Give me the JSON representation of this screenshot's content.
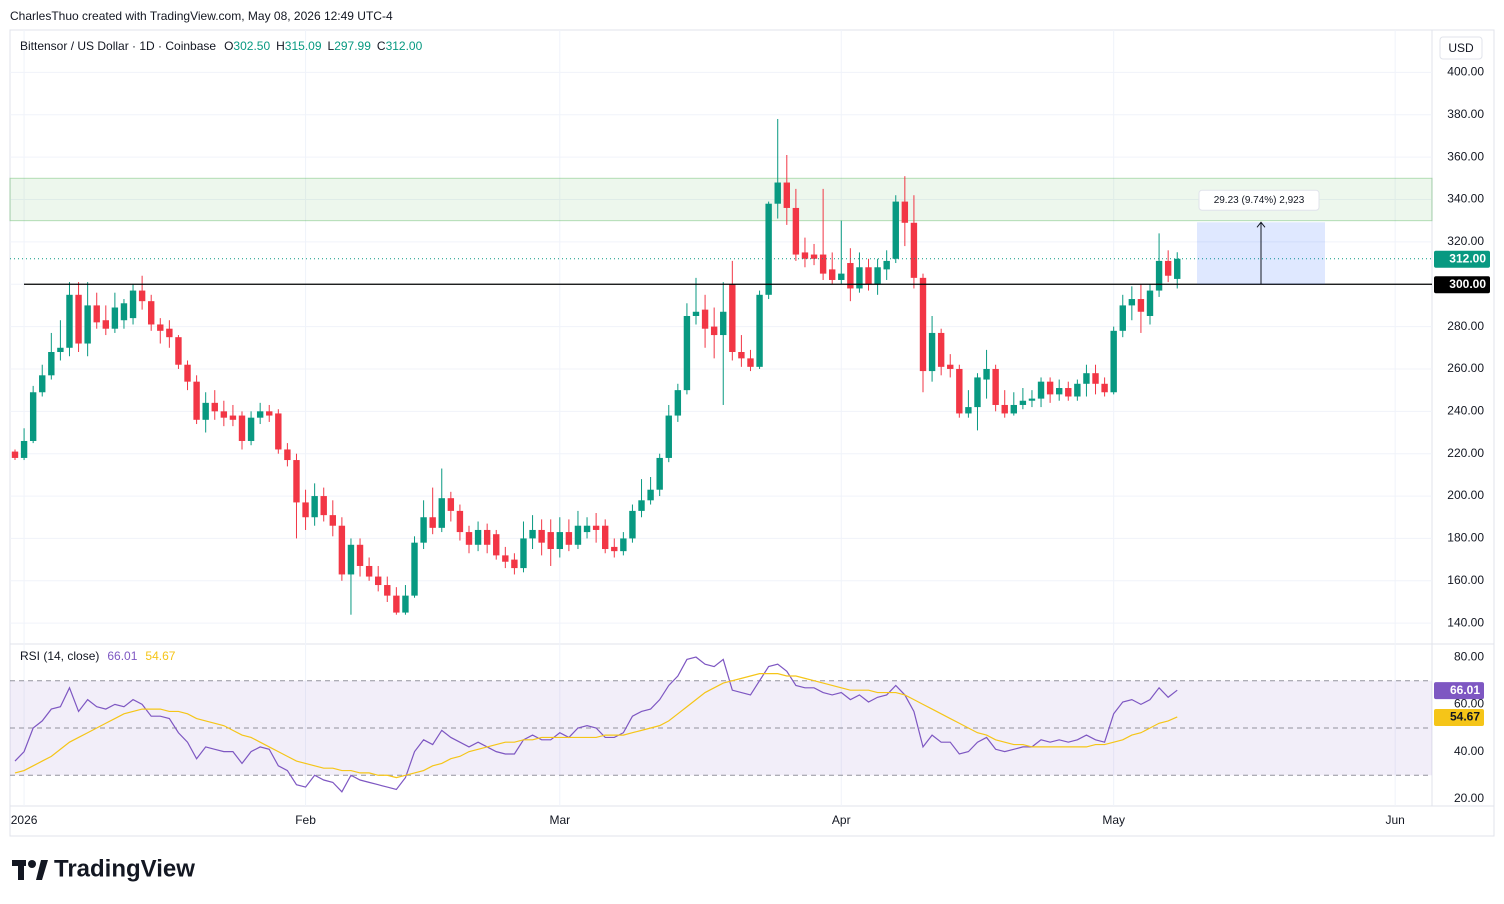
{
  "header": {
    "attribution": "CharlesThuo created with TradingView.com, May 08, 2026 12:49 UTC-4",
    "logo": "TradingView"
  },
  "chart_data": [
    {
      "type": "candlestick",
      "title": "Bittensor / US Dollar · 1D · Coinbase",
      "currency": "USD",
      "ohlc_legend": [
        {
          "key": "O",
          "text": "302.50"
        },
        {
          "key": "H",
          "text": "315.09"
        },
        {
          "key": "L",
          "text": "297.99"
        },
        {
          "key": "C",
          "text": "312.00"
        }
      ],
      "up_color": "#089981",
      "down_color": "#f23645",
      "categories": [
        null,
        "2026",
        null,
        null,
        null,
        null,
        null,
        null,
        null,
        null,
        null,
        null,
        null,
        null,
        null,
        null,
        null,
        null,
        null,
        null,
        null,
        null,
        null,
        null,
        null,
        null,
        null,
        null,
        null,
        null,
        null,
        null,
        "Feb",
        null,
        null,
        null,
        null,
        null,
        null,
        null,
        null,
        null,
        null,
        null,
        null,
        null,
        null,
        null,
        null,
        null,
        null,
        null,
        null,
        null,
        null,
        null,
        null,
        null,
        null,
        null,
        "Mar",
        null,
        null,
        null,
        null,
        null,
        null,
        null,
        null,
        null,
        null,
        null,
        null,
        null,
        null,
        null,
        null,
        null,
        null,
        null,
        null,
        null,
        null,
        null,
        null,
        null,
        null,
        null,
        null,
        null,
        null,
        "Apr",
        null,
        null,
        null,
        null,
        null,
        null,
        null,
        null,
        null,
        null,
        null,
        null,
        null,
        null,
        null,
        null,
        null,
        null,
        null,
        null,
        null,
        null,
        null,
        null,
        null,
        null,
        null,
        null,
        null,
        "May",
        null,
        null,
        null,
        null,
        null,
        null,
        null,
        null,
        null,
        null,
        null,
        null,
        null,
        null,
        null,
        null,
        null,
        null,
        null,
        null,
        null,
        null,
        null,
        null,
        null,
        null,
        null,
        null,
        null,
        null,
        "Jun"
      ],
      "open": [
        221,
        218,
        226,
        249,
        257,
        268,
        270,
        295,
        272,
        290,
        283,
        279,
        283,
        284,
        297,
        292,
        281,
        279,
        275,
        262,
        254,
        236,
        244,
        240,
        238,
        238,
        226,
        237,
        240,
        239,
        222,
        217,
        197,
        190,
        200,
        191,
        186,
        163,
        177,
        167,
        162,
        158,
        153,
        145,
        153,
        178,
        190,
        185,
        199,
        193,
        183,
        177,
        184,
        182,
        172,
        170,
        166,
        180,
        184,
        183,
        175,
        183,
        177,
        183,
        186,
        186,
        176,
        174,
        180,
        193,
        198,
        203,
        218,
        238,
        250,
        285,
        288,
        280,
        276,
        300,
        268,
        265,
        261,
        295,
        338,
        348,
        336,
        315,
        314,
        314,
        307,
        302,
        310,
        298,
        308,
        300,
        307,
        312,
        339,
        329,
        303,
        259,
        277,
        262,
        260,
        239,
        242,
        255,
        260,
        243,
        239,
        243,
        245,
        246,
        254,
        248,
        251,
        247,
        253,
        258,
        253,
        249,
        278,
        290,
        293,
        285,
        297,
        311,
        302.5,
        null,
        null,
        null,
        null,
        null,
        null,
        null,
        null,
        null,
        null,
        null,
        null,
        null,
        null,
        null,
        null,
        null,
        null,
        null,
        null,
        null,
        null,
        null,
        null
      ],
      "high": [
        222,
        232,
        252,
        262,
        277,
        283,
        301,
        301,
        301,
        296,
        290,
        296,
        293,
        300,
        304,
        295,
        284,
        283,
        276,
        264,
        257,
        249,
        250,
        245,
        243,
        240,
        240,
        244,
        243,
        241,
        225,
        220,
        203,
        206,
        204,
        198,
        190,
        180,
        180,
        171,
        167,
        162,
        157,
        158,
        181,
        198,
        204,
        213,
        202,
        196,
        186,
        188,
        187,
        184,
        176,
        173,
        188,
        191,
        189,
        189,
        190,
        189,
        193,
        190,
        192,
        189,
        180,
        183,
        196,
        208,
        209,
        220,
        243,
        253,
        291,
        303,
        295,
        289,
        301,
        311,
        276,
        269,
        297,
        339,
        378,
        361,
        345,
        322,
        319,
        345,
        315,
        330,
        317,
        315,
        312,
        312,
        316,
        342,
        351,
        342,
        305,
        285,
        279,
        267,
        262,
        250,
        258,
        269,
        262,
        250,
        249,
        251,
        250,
        256,
        256,
        255,
        254,
        255,
        262,
        262,
        256,
        280,
        295,
        299,
        300,
        300,
        324,
        316,
        315.09,
        null,
        null,
        null,
        null,
        null,
        null,
        null,
        null,
        null,
        null,
        null,
        null,
        null,
        null,
        null,
        null,
        null,
        null,
        null,
        null,
        null,
        null,
        null,
        null
      ],
      "low": [
        217,
        217,
        225,
        247,
        255,
        264,
        266,
        268,
        266,
        279,
        276,
        277,
        279,
        281,
        288,
        278,
        272,
        270,
        260,
        250,
        234,
        230,
        236,
        233,
        233,
        222,
        224,
        234,
        235,
        220,
        214,
        180,
        184,
        186,
        188,
        181,
        160,
        144,
        162,
        160,
        155,
        150,
        144,
        144,
        152,
        175,
        182,
        183,
        188,
        179,
        173,
        174,
        173,
        170,
        166,
        163,
        164,
        175,
        172,
        167,
        171,
        174,
        175,
        180,
        178,
        173,
        171,
        172,
        178,
        190,
        196,
        200,
        216,
        235,
        248,
        281,
        270,
        265,
        243,
        264,
        261,
        259,
        260,
        293,
        331,
        328,
        311,
        308,
        309,
        302,
        300,
        300,
        292,
        296,
        297,
        295,
        302,
        310,
        318,
        298,
        249,
        254,
        257,
        256,
        237,
        237,
        231,
        246,
        240,
        237,
        238,
        241,
        242,
        242,
        244,
        245,
        245,
        245,
        247,
        248,
        247,
        248,
        275,
        283,
        277,
        281,
        294,
        301,
        297.99,
        null,
        null,
        null,
        null,
        null,
        null,
        null,
        null,
        null,
        null,
        null,
        null,
        null,
        null,
        null,
        null,
        null,
        null,
        null,
        null,
        null,
        null,
        null,
        null
      ],
      "close": [
        218,
        226,
        249,
        257,
        268,
        270,
        295,
        272,
        290,
        282,
        279,
        289,
        291,
        297,
        292,
        281,
        278,
        275,
        262,
        254,
        236,
        244,
        240,
        237,
        236,
        226,
        237,
        240,
        238,
        222,
        217,
        197,
        190,
        200,
        191,
        186,
        163,
        177,
        167,
        162,
        158,
        153,
        145,
        153,
        178,
        190,
        185,
        199,
        193,
        183,
        177,
        184,
        177,
        172,
        169,
        166,
        180,
        184,
        178,
        175,
        183,
        177,
        186,
        186,
        184,
        175,
        174,
        180,
        193,
        198,
        203,
        218,
        238,
        250,
        285,
        287,
        279,
        276,
        287,
        268,
        265,
        261,
        295,
        338,
        348,
        336,
        314,
        312,
        312,
        305,
        302,
        305,
        298,
        308,
        300,
        308,
        311,
        339,
        329,
        303,
        259,
        277,
        261,
        260,
        239,
        242,
        256,
        260,
        243,
        239,
        243,
        245,
        246,
        254,
        248,
        251,
        247,
        253,
        258,
        253,
        249,
        278,
        290,
        293,
        287,
        297,
        311,
        304,
        312,
        null,
        null,
        null,
        null,
        null,
        null,
        null,
        null,
        null,
        null,
        null,
        null,
        null,
        null,
        null,
        null,
        null,
        null,
        null,
        null,
        null,
        null,
        null,
        null
      ],
      "ylim": [
        133,
        420
      ],
      "yticks": [
        {
          "value": 140,
          "label": "140.00"
        },
        {
          "value": 160,
          "label": "160.00"
        },
        {
          "value": 180,
          "label": "180.00"
        },
        {
          "value": 200,
          "label": "200.00"
        },
        {
          "value": 220,
          "label": "220.00"
        },
        {
          "value": 240,
          "label": "240.00"
        },
        {
          "value": 260,
          "label": "260.00"
        },
        {
          "value": 280,
          "label": "280.00"
        },
        {
          "value": 300,
          "label": "300.00"
        },
        {
          "value": 320,
          "label": "320.00"
        },
        {
          "value": 340,
          "label": "340.00"
        },
        {
          "value": 360,
          "label": "360.00"
        },
        {
          "value": 380,
          "label": "380.00"
        },
        {
          "value": 400,
          "label": "400.00"
        }
      ],
      "grid": true,
      "zone": {
        "low": 330,
        "high": 350,
        "color": "#4caf50"
      },
      "measure": {
        "low": 300,
        "high": 329.23,
        "label": "29.23 (9.74%) 2,923",
        "color": "#2962ff"
      },
      "price_tags": [
        {
          "value": 312,
          "label": "312.00",
          "color": "#089981",
          "line": "dotted"
        },
        {
          "value": 300,
          "label": "300.00",
          "color": "#000000",
          "line": "solid"
        }
      ]
    },
    {
      "type": "line",
      "title": "RSI (14, close)",
      "series": [
        {
          "color": "#7e57c2",
          "label_color": "#ffffff",
          "values": [
            36,
            40,
            50,
            53,
            58,
            59,
            67,
            57,
            62,
            59,
            58,
            60,
            59,
            62,
            60,
            55,
            55,
            54,
            48,
            44,
            37,
            42,
            41,
            40,
            40,
            35,
            40,
            42,
            41,
            34,
            32,
            26,
            25,
            30,
            28,
            27,
            23,
            30,
            28,
            27,
            26,
            25,
            24,
            29,
            40,
            45,
            43,
            49,
            46,
            44,
            42,
            44,
            42,
            40,
            39,
            39,
            45,
            47,
            45,
            45,
            48,
            46,
            50,
            51,
            50,
            46,
            46,
            48,
            55,
            57,
            58,
            62,
            68,
            72,
            79,
            80,
            77,
            76,
            79,
            66,
            65,
            64,
            70,
            76,
            77,
            74,
            68,
            67,
            67,
            65,
            64,
            65,
            62,
            64,
            61,
            63,
            64,
            68,
            64,
            57,
            42,
            47,
            44,
            44,
            39,
            40,
            44,
            46,
            41,
            40,
            41,
            42,
            42,
            45,
            44,
            45,
            44,
            45,
            47,
            45,
            44,
            56,
            61,
            62,
            60,
            62,
            67,
            63,
            66.01,
            null,
            null,
            null,
            null,
            null,
            null,
            null,
            null,
            null,
            null,
            null,
            null,
            null,
            null,
            null,
            null,
            null,
            null,
            null,
            null,
            null,
            null,
            null,
            null
          ]
        },
        {
          "color": "#f5c518",
          "label_color": "#131722",
          "values": [
            31,
            32,
            34,
            36,
            38,
            41,
            44,
            46,
            48,
            50,
            52,
            54,
            56,
            57,
            58,
            58,
            58,
            57,
            57,
            56,
            54,
            53,
            52,
            51,
            49,
            47,
            46,
            44,
            42,
            40,
            38,
            36,
            35,
            34,
            33,
            33,
            32,
            32,
            31,
            31,
            30,
            30,
            29,
            30,
            31,
            32,
            34,
            35,
            37,
            38,
            40,
            41,
            42,
            43,
            44,
            44,
            45,
            45,
            46,
            46,
            46,
            46,
            46,
            46,
            46,
            47,
            47,
            47,
            48,
            49,
            50,
            51,
            53,
            56,
            59,
            62,
            65,
            67,
            69,
            70,
            71,
            72,
            73,
            73,
            73,
            72,
            72,
            71,
            70,
            69,
            68,
            67,
            66,
            66,
            66,
            65,
            65,
            65,
            64,
            62,
            60,
            58,
            56,
            54,
            52,
            50,
            48,
            47,
            45,
            44,
            43,
            43,
            42,
            42,
            42,
            42,
            42,
            42,
            42,
            43,
            43,
            44,
            45,
            47,
            48,
            50,
            52,
            53,
            54.67,
            null,
            null,
            null,
            null,
            null,
            null,
            null,
            null,
            null,
            null,
            null,
            null,
            null,
            null,
            null,
            null,
            null,
            null,
            null,
            null,
            null,
            null,
            null,
            null
          ]
        }
      ],
      "ylim": [
        17,
        83
      ],
      "yticks": [
        {
          "value": 20,
          "label": "20.00"
        },
        {
          "value": 40,
          "label": "40.00"
        },
        {
          "value": 60,
          "label": "60.00"
        },
        {
          "value": 80,
          "label": "80.00"
        }
      ],
      "bands": [
        30,
        50,
        70
      ],
      "band_color": "#7e57c2"
    }
  ]
}
